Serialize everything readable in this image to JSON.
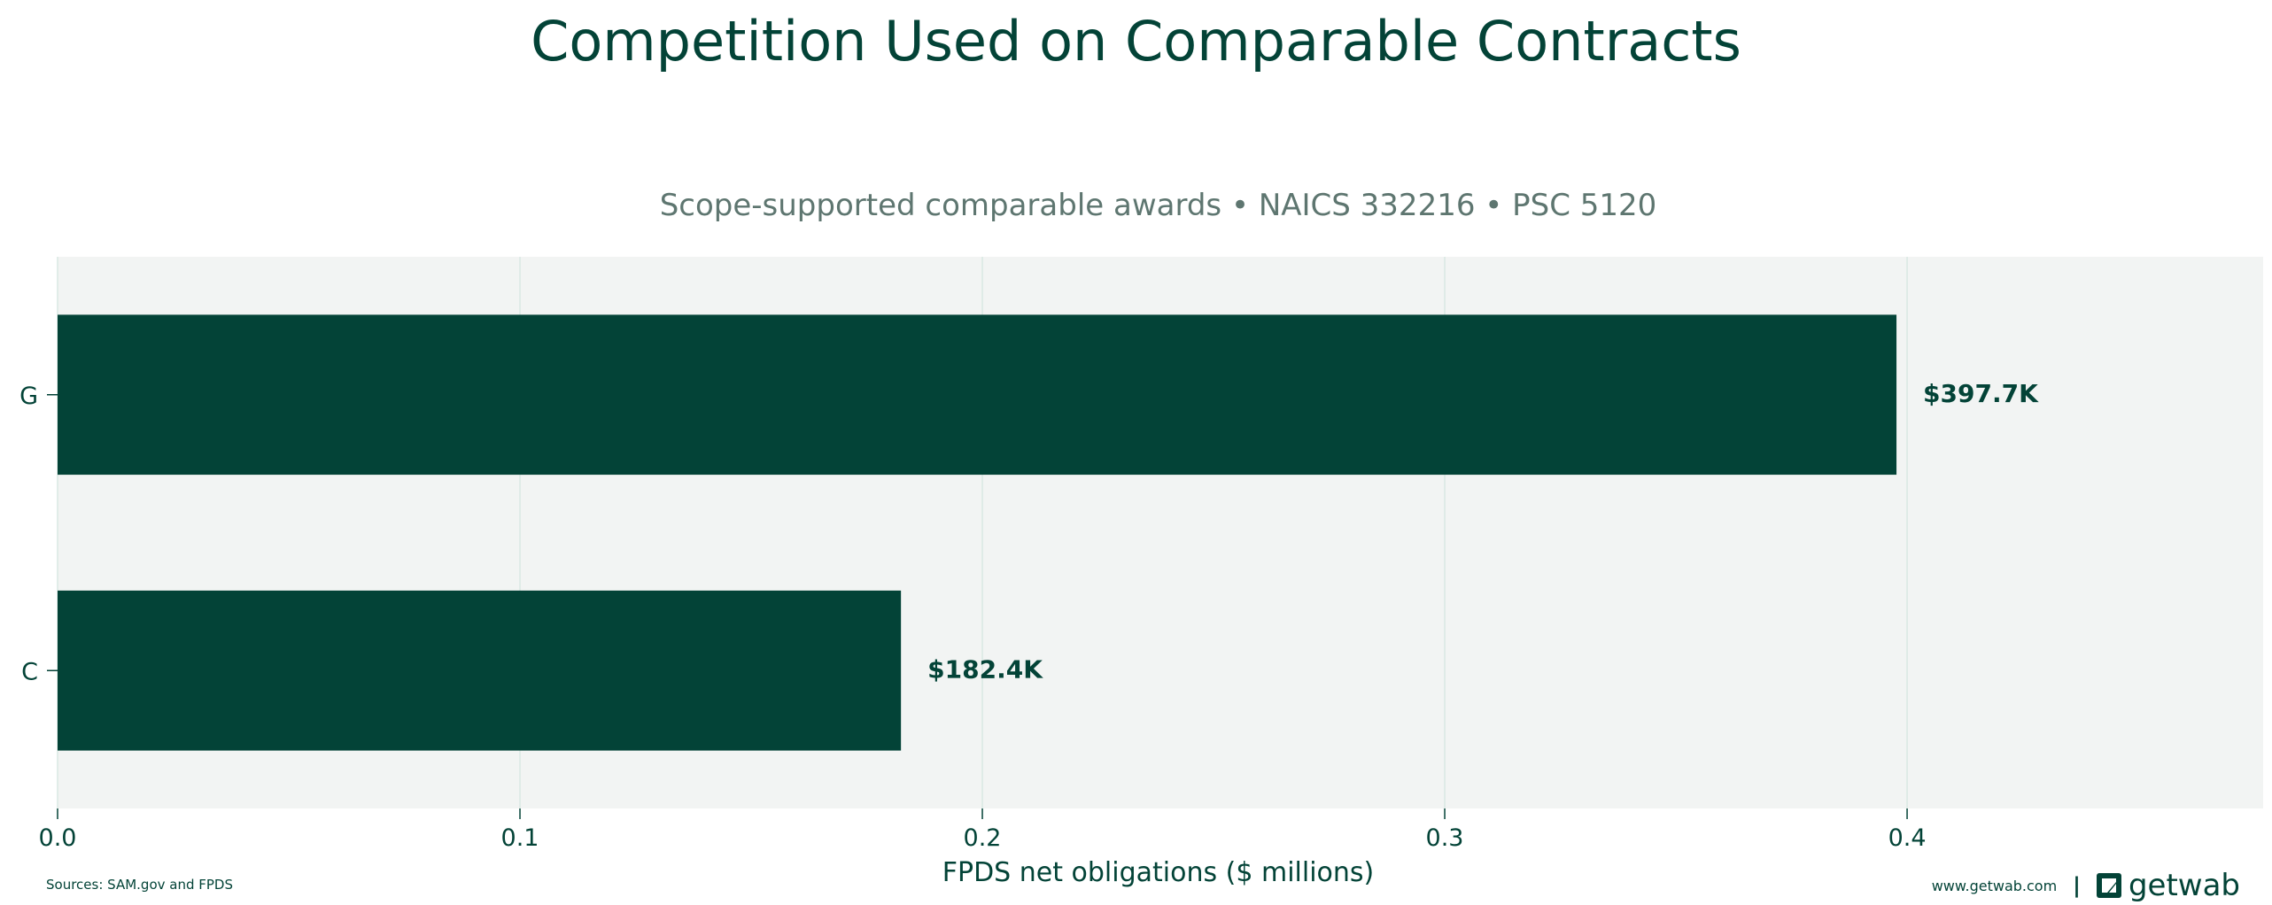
{
  "chart_data": {
    "type": "bar",
    "orientation": "horizontal",
    "title": "Competition Used on Comparable Contracts",
    "subtitle": "Scope-supported comparable awards • NAICS 332216 • PSC 5120",
    "xlabel": "FPDS net obligations ($ millions)",
    "ylabel": "",
    "categories": [
      "G",
      "C"
    ],
    "values": [
      0.3977,
      0.1824
    ],
    "data_labels": [
      "$397.7K",
      "$182.4K"
    ],
    "xlim": [
      0,
      0.477
    ],
    "xticks": [
      0.0,
      0.1,
      0.2,
      0.3,
      0.4
    ],
    "xtick_labels": [
      "0.0",
      "0.1",
      "0.2",
      "0.3",
      "0.4"
    ],
    "grid": true,
    "colors": {
      "bar": "#034337",
      "plot_background": "#f2f4f3",
      "grid": "#d9e8e3",
      "text": "#034337",
      "subtitle": "#5e7670"
    }
  },
  "footer": {
    "source": "Sources: SAM.gov and FPDS",
    "url": "www.getwab.com",
    "separator": "|",
    "logo_text": "getwab",
    "logo_icon": "getwab-logo-icon"
  }
}
